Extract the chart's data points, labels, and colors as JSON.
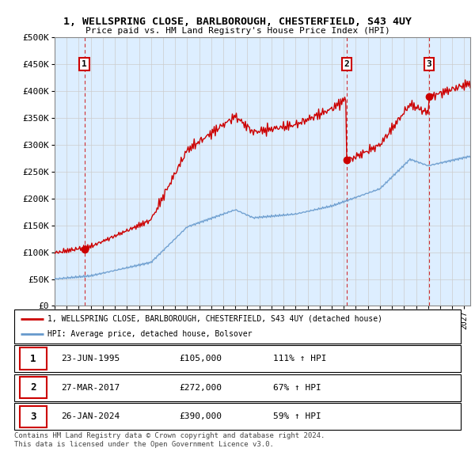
{
  "title": "1, WELLSPRING CLOSE, BARLBOROUGH, CHESTERFIELD, S43 4UY",
  "subtitle": "Price paid vs. HM Land Registry's House Price Index (HPI)",
  "ylim": [
    0,
    500000
  ],
  "yticks": [
    0,
    50000,
    100000,
    150000,
    200000,
    250000,
    300000,
    350000,
    400000,
    450000,
    500000
  ],
  "ytick_labels": [
    "£0",
    "£50K",
    "£100K",
    "£150K",
    "£200K",
    "£250K",
    "£300K",
    "£350K",
    "£400K",
    "£450K",
    "£500K"
  ],
  "xlim_start": 1993.0,
  "xlim_end": 2027.5,
  "sale_dates": [
    1995.47,
    2017.23,
    2024.07
  ],
  "sale_prices": [
    105000,
    272000,
    390000
  ],
  "sale_labels": [
    "1",
    "2",
    "3"
  ],
  "legend_line1": "1, WELLSPRING CLOSE, BARLBOROUGH, CHESTERFIELD, S43 4UY (detached house)",
  "legend_line2": "HPI: Average price, detached house, Bolsover",
  "table_rows": [
    [
      "1",
      "23-JUN-1995",
      "£105,000",
      "111% ↑ HPI"
    ],
    [
      "2",
      "27-MAR-2017",
      "£272,000",
      "67% ↑ HPI"
    ],
    [
      "3",
      "26-JAN-2024",
      "£390,000",
      "59% ↑ HPI"
    ]
  ],
  "footer": "Contains HM Land Registry data © Crown copyright and database right 2024.\nThis data is licensed under the Open Government Licence v3.0.",
  "red_color": "#cc0000",
  "blue_color": "#6699cc",
  "bg_color": "#ddeeff",
  "grid_color": "#cccccc"
}
